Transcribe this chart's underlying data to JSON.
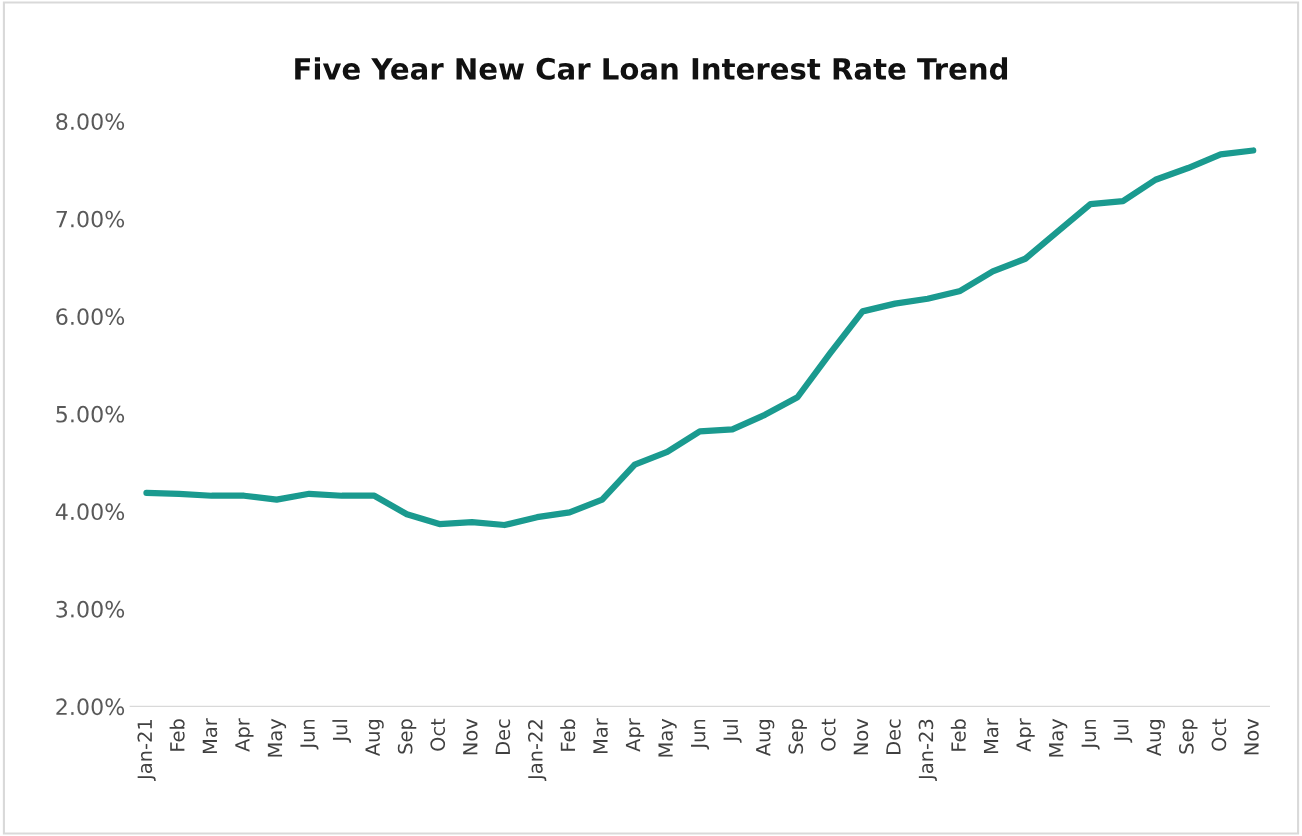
{
  "chart_data": {
    "type": "line",
    "title": "Five Year New Car Loan Interest Rate Trend",
    "categories": [
      "Jan-21",
      "Feb",
      "Mar",
      "Apr",
      "May",
      "Jun",
      "Jul",
      "Aug",
      "Sep",
      "Oct",
      "Nov",
      "Dec",
      "Jan-22",
      "Feb",
      "Mar",
      "Apr",
      "May",
      "Jun",
      "Jul",
      "Aug",
      "Sep",
      "Oct",
      "Nov",
      "Dec",
      "Jan-23",
      "Feb",
      "Mar",
      "Apr",
      "May",
      "Jun",
      "Jul",
      "Aug",
      "Sep",
      "Oct",
      "Nov"
    ],
    "series": [
      {
        "color": "#1a9a8f",
        "values": [
          4.19,
          4.18,
          4.16,
          4.16,
          4.12,
          4.18,
          4.16,
          4.16,
          3.97,
          3.87,
          3.89,
          3.86,
          3.94,
          3.99,
          4.12,
          4.48,
          4.61,
          4.82,
          4.84,
          4.99,
          5.17,
          5.62,
          6.05,
          6.13,
          6.18,
          6.26,
          6.46,
          6.59,
          6.87,
          7.15,
          7.18,
          7.4,
          7.52,
          7.66,
          7.7
        ]
      }
    ],
    "ylim": [
      2,
      8
    ],
    "yticks": [
      {
        "value": 2,
        "label": "2.00%"
      },
      {
        "value": 3,
        "label": "3.00%"
      },
      {
        "value": 4,
        "label": "4.00%"
      },
      {
        "value": 5,
        "label": "5.00%"
      },
      {
        "value": 6,
        "label": "6.00%"
      },
      {
        "value": 7,
        "label": "7.00%"
      },
      {
        "value": 8,
        "label": "8.00%"
      }
    ],
    "grid": false
  }
}
